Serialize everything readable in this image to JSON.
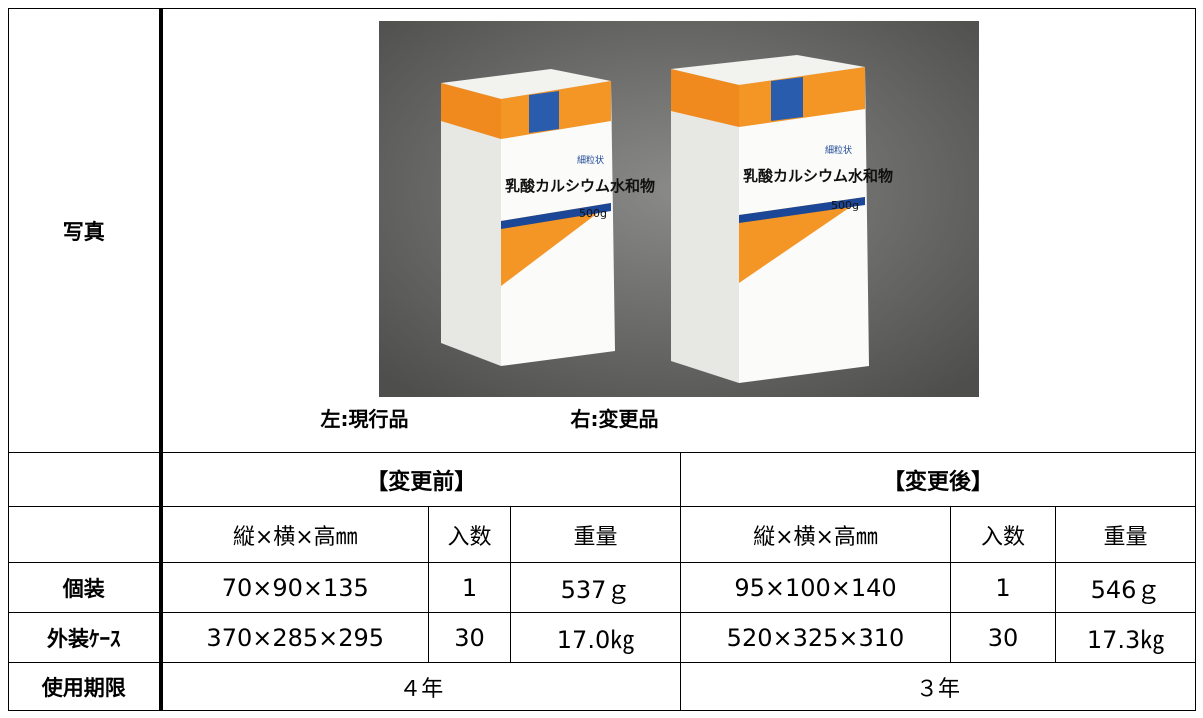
{
  "table": {
    "photo_label": "写真",
    "photo": {
      "product_name": "乳酸カルシウム水和物",
      "net_weight": "500g",
      "form": "細粒状",
      "caption_left": "左:現行品",
      "caption_right": "右:変更品"
    },
    "groups": [
      "【変更前】",
      "【変更後】"
    ],
    "subheaders": [
      "縦×横×高㎜",
      "入数",
      "重量",
      "縦×横×高㎜",
      "入数",
      "重量"
    ],
    "rows": [
      [
        "個装",
        "70×90×135",
        "1",
        "537ｇ",
        "95×100×140",
        "1",
        "546ｇ"
      ],
      [
        "外装ｹｰｽ",
        "370×285×295",
        "30",
        "17.0㎏",
        "520×325×310",
        "30",
        "17.3㎏"
      ]
    ],
    "expiry": [
      "使用期限",
      "４年",
      "３年"
    ]
  }
}
